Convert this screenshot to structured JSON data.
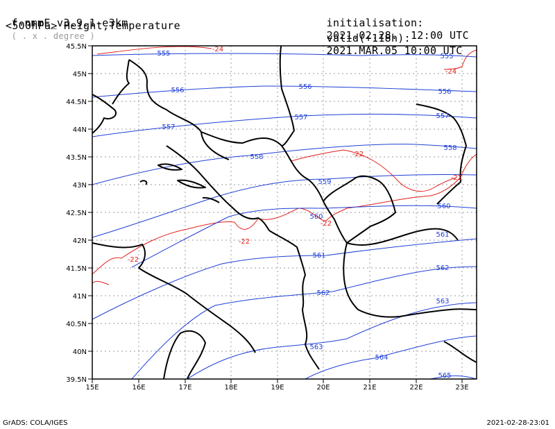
{
  "header": {
    "model": "f-nmmE_v3.9.1-e3km",
    "projection": "( . x . degree )",
    "field": "<500hPa> Height,Temperature",
    "init_label": "initialisation:",
    "init_value": "2021.02.28.  12:00 UTC",
    "valid_label": "valid(+118h):",
    "valid_value": "2021.MAR.05 10:00 UTC"
  },
  "map": {
    "lat_ticks": [
      "45.5N",
      "45N",
      "44.5N",
      "44N",
      "43.5N",
      "43N",
      "42.5N",
      "42N",
      "41.5N",
      "41N",
      "40.5N",
      "40N",
      "39.5N"
    ],
    "lon_ticks": [
      "15E",
      "16E",
      "17E",
      "18E",
      "19E",
      "20E",
      "21E",
      "22E",
      "23E"
    ],
    "colors": {
      "height": "#1f3fd6",
      "temperature": "#e0201a",
      "coast": "#000000",
      "grid": "#9a9a9a"
    },
    "height_labels": [
      "555",
      "555",
      "556",
      "556",
      "556",
      "557",
      "557",
      "557",
      "558",
      "558",
      "559",
      "560",
      "560",
      "561",
      "561",
      "562",
      "562",
      "563",
      "563",
      "564",
      "565"
    ],
    "temp_labels": [
      "-24",
      "-24",
      "-22",
      "-22",
      "-22",
      "-22",
      "-22"
    ]
  },
  "footer": {
    "left": "GrADS: COLA/IGES",
    "right": "2021-02-28-23:01"
  }
}
